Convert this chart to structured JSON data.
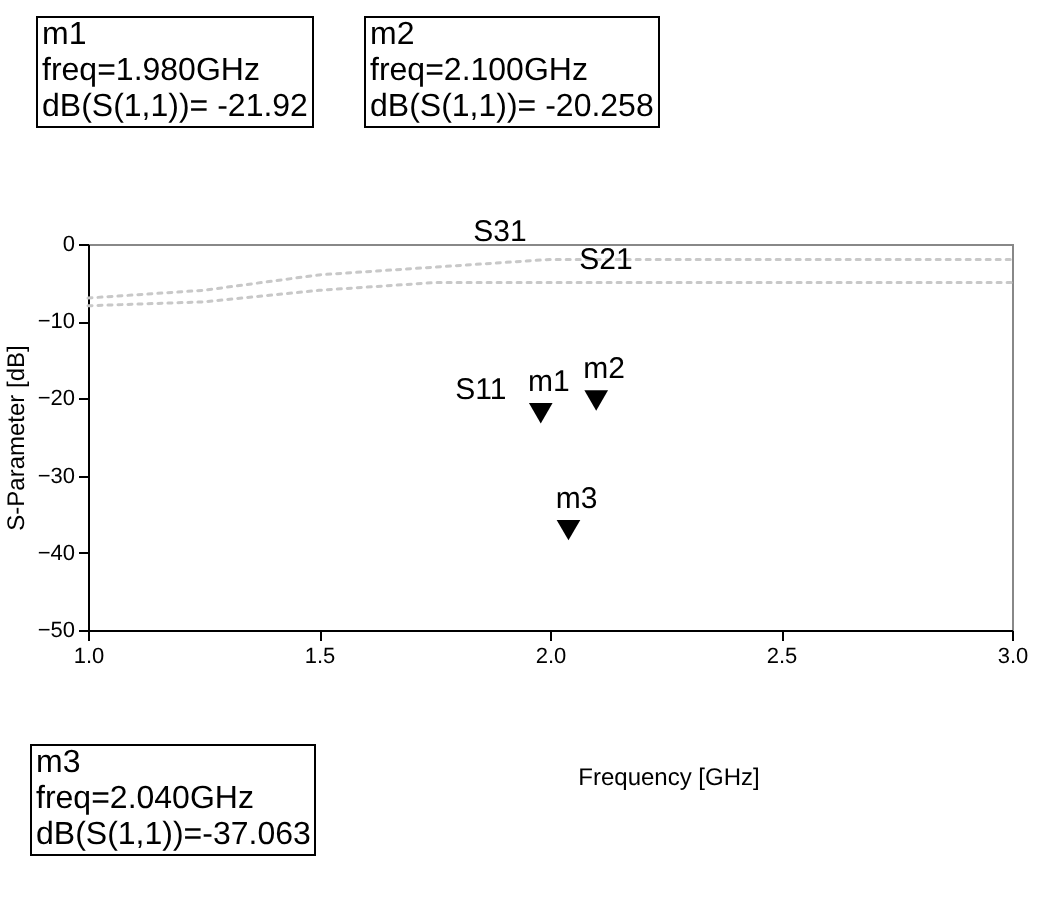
{
  "chart_data": {
    "type": "line",
    "xlabel": "Frequency [GHz]",
    "ylabel": "S-Parameter [dB]",
    "xlim": [
      1.0,
      3.0
    ],
    "xticks": [
      {
        "value": 1,
        "label": "1.0"
      },
      {
        "value": 1.5,
        "label": "1.5"
      },
      {
        "value": 2,
        "label": "2.0"
      },
      {
        "value": 2.5,
        "label": "2.5"
      },
      {
        "value": 3,
        "label": "3.0"
      }
    ],
    "ylim": [
      -50,
      0
    ],
    "yticks": [
      -50,
      -40,
      -30,
      -20,
      -10,
      0
    ],
    "grid": false,
    "legend": false,
    "series": [
      {
        "name": "S11",
        "type": "scatter",
        "marker": "triangle",
        "color": "#000000",
        "x": [
          1.98,
          2.04,
          2.1
        ],
        "values": [
          -21.92,
          -37.063,
          -20.258
        ]
      },
      {
        "name": "S31",
        "line_style": "dotted",
        "color": "#c8c8c8",
        "x": [
          1.0,
          1.25,
          1.5,
          1.75,
          2.0,
          2.25,
          2.5,
          2.75,
          3.0
        ],
        "values": [
          -7,
          -6,
          -4,
          -3,
          -2,
          -2,
          -2,
          -2,
          -2
        ]
      },
      {
        "name": "S21",
        "line_style": "dotted",
        "color": "#c8c8c8",
        "x": [
          1.0,
          1.25,
          1.5,
          1.75,
          2.0,
          2.25,
          2.5,
          2.75,
          3.0
        ],
        "values": [
          -8,
          -7.5,
          -6,
          -5,
          -5,
          -5,
          -5,
          -5,
          -5
        ]
      }
    ],
    "annotations": [
      "m1\nfreq=1.980GHz\ndB(S(1,1))= -21.92",
      "m2\nfreq=2.100GHz\ndB(S(1,1))= -20.258",
      "m3\nfreq=2.040GHz\ndB(S(1,1))=-37.063",
      {
        "text": "m1",
        "x": 1.98,
        "y": -21.92
      },
      {
        "text": "m2",
        "x": 2.1,
        "y": -20.258
      },
      {
        "text": "m3",
        "x": 2.04,
        "y": -37.063
      }
    ]
  }
}
